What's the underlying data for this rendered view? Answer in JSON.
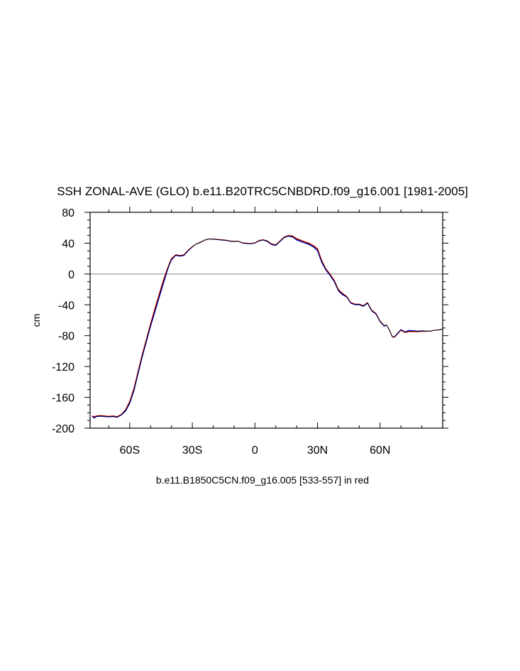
{
  "chart_data": {
    "type": "line",
    "title": "SSH ZONAL-AVE (GLO) b.e11.B20TRC5CNBDRD.f09_g16.001 [1981-2005]",
    "xlabel": "b.e11.B1850C5CN.f09_g16.005 [533-557] in red",
    "ylabel": "cm",
    "xlim": [
      -79,
      90
    ],
    "ylim": [
      -200,
      80
    ],
    "x_ticks": [
      {
        "value": -60,
        "label": "60S"
      },
      {
        "value": -30,
        "label": "30S"
      },
      {
        "value": 0,
        "label": "0"
      },
      {
        "value": 30,
        "label": "30N"
      },
      {
        "value": 60,
        "label": "60N"
      }
    ],
    "y_ticks": [
      {
        "value": 80,
        "label": "80"
      },
      {
        "value": 40,
        "label": "40"
      },
      {
        "value": 0,
        "label": "0"
      },
      {
        "value": -40,
        "label": "-40"
      },
      {
        "value": -80,
        "label": "-80"
      },
      {
        "value": -120,
        "label": "-120"
      },
      {
        "value": -160,
        "label": "-160"
      },
      {
        "value": -200,
        "label": "-200"
      }
    ],
    "reference_line": {
      "y": 0,
      "color": "#9a9a9a"
    },
    "series": [
      {
        "color": "#0000ff",
        "x": [
          -78,
          -77,
          -76,
          -74,
          -72,
          -70,
          -68,
          -66,
          -64,
          -62,
          -60,
          -58,
          -56,
          -54,
          -52,
          -50,
          -48,
          -46,
          -44,
          -43,
          -42,
          -41,
          -40,
          -38,
          -36,
          -34,
          -32,
          -30,
          -28,
          -26,
          -24,
          -22,
          -20,
          -18,
          -16,
          -14,
          -12,
          -10,
          -8,
          -6,
          -4,
          -2,
          0,
          2,
          4,
          6,
          8,
          10,
          12,
          14,
          16,
          18,
          20,
          22,
          24,
          26,
          28,
          30,
          32,
          34,
          36,
          38,
          40,
          42,
          44,
          46,
          48,
          50,
          52,
          54,
          56,
          58,
          60,
          62,
          63,
          64,
          65,
          66,
          67,
          68,
          70,
          72,
          74,
          76,
          78,
          80,
          82,
          84,
          86,
          88,
          90
        ],
        "y": [
          -185,
          -187,
          -185,
          -184.5,
          -185,
          -185.5,
          -185,
          -186,
          -183,
          -178,
          -168,
          -152,
          -130,
          -108,
          -88,
          -68,
          -50,
          -32,
          -14,
          -5,
          4,
          12,
          18,
          24,
          23,
          24,
          30,
          35,
          39,
          41,
          44,
          45.5,
          45,
          44.5,
          44,
          43.5,
          42.5,
          42,
          42.5,
          40,
          39.5,
          39,
          40,
          43,
          44,
          42,
          38,
          37,
          42,
          47,
          49,
          48,
          44,
          42,
          40,
          38,
          35,
          30,
          15,
          5,
          -2,
          -10,
          -22,
          -27,
          -30,
          -38,
          -40,
          -40,
          -42,
          -38,
          -48,
          -52,
          -62,
          -68,
          -66,
          -70,
          -76,
          -82,
          -81,
          -78,
          -72,
          -75,
          -73,
          -73.5,
          -74,
          -73.5,
          -74,
          -74,
          -73,
          -72.5,
          -71.5
        ]
      },
      {
        "color": "#ff0000",
        "x": [
          -78,
          -77,
          -76,
          -74,
          -72,
          -70,
          -68,
          -66,
          -64,
          -62,
          -60,
          -58,
          -56,
          -54,
          -52,
          -50,
          -48,
          -46,
          -44,
          -43,
          -42,
          -41,
          -40,
          -38,
          -36,
          -34,
          -32,
          -30,
          -28,
          -26,
          -24,
          -22,
          -20,
          -18,
          -16,
          -14,
          -12,
          -10,
          -8,
          -6,
          -4,
          -2,
          0,
          2,
          4,
          6,
          8,
          10,
          12,
          14,
          16,
          18,
          20,
          22,
          24,
          26,
          28,
          30,
          32,
          34,
          36,
          38,
          40,
          42,
          44,
          46,
          48,
          50,
          52,
          54,
          56,
          58,
          60,
          62,
          63,
          64,
          65,
          66,
          67,
          68,
          70,
          72,
          74,
          76,
          78,
          80,
          82,
          84,
          86,
          88,
          90
        ],
        "y": [
          -184,
          -185,
          -184,
          -183.5,
          -184,
          -184.5,
          -184,
          -185,
          -182,
          -176,
          -165,
          -148,
          -126,
          -104,
          -84,
          -64,
          -45,
          -27,
          -9,
          -1,
          7,
          14,
          20,
          25,
          24,
          25,
          31,
          35.5,
          39,
          41.5,
          44,
          45.5,
          45.5,
          45,
          44.5,
          44,
          43,
          42.5,
          42.5,
          40.5,
          40,
          39.5,
          40.5,
          43.5,
          44.5,
          43,
          39,
          38,
          43,
          48,
          50,
          49.5,
          46,
          44,
          42,
          40,
          37,
          33,
          18,
          7,
          0,
          -8,
          -20,
          -25,
          -29,
          -37,
          -39,
          -39,
          -41,
          -37,
          -47,
          -51,
          -61,
          -67,
          -66,
          -70,
          -76,
          -82,
          -82,
          -79,
          -73,
          -76,
          -75,
          -75,
          -75,
          -74.5,
          -74.5,
          -74,
          -73,
          -72.5,
          -71.5
        ]
      },
      {
        "color": "#000000",
        "x": [
          -78,
          -77,
          -76,
          -74,
          -72,
          -70,
          -68,
          -66,
          -64,
          -62,
          -60,
          -58,
          -56,
          -54,
          -52,
          -50,
          -48,
          -46,
          -44,
          -43,
          -42,
          -41,
          -40,
          -38,
          -36,
          -34,
          -32,
          -30,
          -28,
          -26,
          -24,
          -22,
          -20,
          -18,
          -16,
          -14,
          -12,
          -10,
          -8,
          -6,
          -4,
          -2,
          0,
          2,
          4,
          6,
          8,
          10,
          12,
          14,
          16,
          18,
          20,
          22,
          24,
          26,
          28,
          30,
          32,
          34,
          36,
          38,
          40,
          42,
          44,
          46,
          48,
          50,
          52,
          54,
          56,
          58,
          60,
          62,
          63,
          64,
          65,
          66,
          67,
          68,
          70,
          72,
          74,
          76,
          78,
          80,
          82,
          84,
          86,
          88,
          90
        ],
        "y": [
          -184.5,
          -186,
          -184.5,
          -184,
          -184.5,
          -185,
          -184.5,
          -185.5,
          -182.5,
          -177,
          -166.5,
          -150,
          -128,
          -106,
          -86,
          -66,
          -47.5,
          -29.5,
          -11.5,
          -3,
          5.5,
          13,
          19,
          24.5,
          23.5,
          24.5,
          30.5,
          35.2,
          39,
          41.2,
          44,
          45.5,
          45.2,
          44.7,
          44.2,
          43.7,
          42.7,
          42.2,
          42.5,
          40.2,
          39.7,
          39.2,
          40.2,
          43.2,
          44.2,
          42.5,
          38.5,
          37.5,
          42.5,
          47.5,
          49.5,
          48.7,
          45,
          43,
          41,
          39,
          36,
          31.5,
          16.5,
          6,
          -1,
          -9,
          -21,
          -26,
          -29.5,
          -37.5,
          -39.5,
          -39.5,
          -41.5,
          -37.5,
          -47.5,
          -51.5,
          -61.5,
          -67.5,
          -66,
          -70,
          -76,
          -82,
          -81.5,
          -78.5,
          -72.5,
          -75.5,
          -74,
          -74.2,
          -74.5,
          -74,
          -74.2,
          -74,
          -73,
          -72.5,
          -71.5
        ]
      }
    ]
  }
}
